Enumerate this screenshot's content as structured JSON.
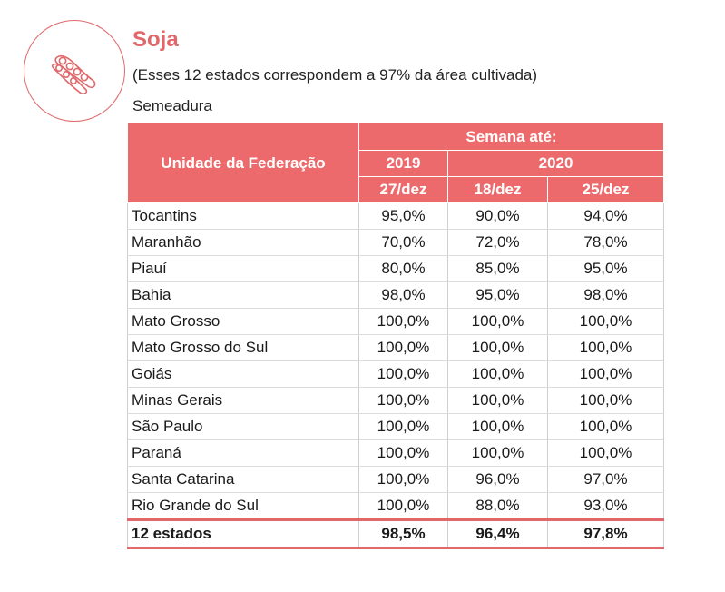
{
  "header": {
    "logo_icon": "soybean-pod-icon",
    "title": "Soja",
    "subtitle": "(Esses 12 estados correspondem a 97% da área cultivada)",
    "caption": "Semeadura"
  },
  "colors": {
    "accent": "#ec6a6c",
    "title": "#e0686a"
  },
  "table": {
    "col_header": "Unidade da Federação",
    "group_header": "Semana até:",
    "year_2019": "2019",
    "year_2020": "2020",
    "dates": [
      "27/dez",
      "18/dez",
      "25/dez"
    ],
    "rows": [
      {
        "uf": "Tocantins",
        "v": [
          "95,0%",
          "90,0%",
          "94,0%"
        ]
      },
      {
        "uf": "Maranhão",
        "v": [
          "70,0%",
          "72,0%",
          "78,0%"
        ]
      },
      {
        "uf": "Piauí",
        "v": [
          "80,0%",
          "85,0%",
          "95,0%"
        ]
      },
      {
        "uf": "Bahia",
        "v": [
          "98,0%",
          "95,0%",
          "98,0%"
        ]
      },
      {
        "uf": "Mato Grosso",
        "v": [
          "100,0%",
          "100,0%",
          "100,0%"
        ]
      },
      {
        "uf": "Mato Grosso do Sul",
        "v": [
          "100,0%",
          "100,0%",
          "100,0%"
        ]
      },
      {
        "uf": "Goiás",
        "v": [
          "100,0%",
          "100,0%",
          "100,0%"
        ]
      },
      {
        "uf": "Minas Gerais",
        "v": [
          "100,0%",
          "100,0%",
          "100,0%"
        ]
      },
      {
        "uf": "São Paulo",
        "v": [
          "100,0%",
          "100,0%",
          "100,0%"
        ]
      },
      {
        "uf": "Paraná",
        "v": [
          "100,0%",
          "100,0%",
          "100,0%"
        ]
      },
      {
        "uf": "Santa Catarina",
        "v": [
          "100,0%",
          "96,0%",
          "97,0%"
        ]
      },
      {
        "uf": "Rio Grande do Sul",
        "v": [
          "100,0%",
          "88,0%",
          "93,0%"
        ]
      }
    ],
    "total": {
      "uf": "12 estados",
      "v": [
        "98,5%",
        "96,4%",
        "97,8%"
      ]
    }
  }
}
